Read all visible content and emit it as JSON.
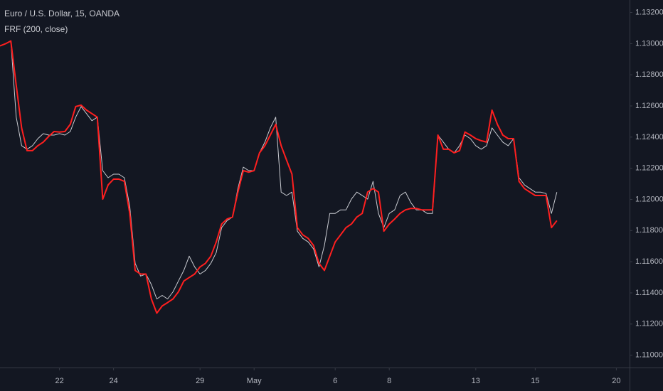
{
  "chart_data": {
    "type": "line",
    "categories": [
      null,
      null,
      null,
      null,
      null,
      null,
      null,
      null,
      null,
      null,
      null,
      "22",
      null,
      null,
      null,
      null,
      null,
      null,
      null,
      null,
      null,
      "24",
      null,
      null,
      null,
      null,
      null,
      null,
      null,
      null,
      null,
      null,
      null,
      null,
      null,
      null,
      null,
      "29",
      null,
      null,
      null,
      null,
      null,
      null,
      null,
      null,
      null,
      "May",
      null,
      null,
      null,
      null,
      null,
      null,
      null,
      null,
      null,
      null,
      null,
      null,
      null,
      null,
      "6",
      null,
      null,
      null,
      null,
      null,
      null,
      null,
      null,
      null,
      "8",
      null,
      null,
      null,
      null,
      null,
      null,
      null,
      null,
      null,
      null,
      null,
      null,
      null,
      null,
      null,
      "13",
      null,
      null,
      null,
      null,
      null,
      null,
      null,
      null,
      null,
      null,
      "15",
      null,
      null,
      null,
      null,
      null,
      null,
      null,
      null,
      null,
      null,
      null,
      null,
      null,
      null,
      "20",
      null,
      null
    ],
    "series": [
      {
        "name": "Euro / U.S. Dollar, 15, OANDA",
        "color": "#c9cbd1",
        "values": [
          1.12985,
          1.12999,
          1.13017,
          1.12528,
          1.12345,
          1.12322,
          1.12345,
          1.1239,
          1.12422,
          1.12413,
          1.12413,
          1.12422,
          1.12413,
          1.12436,
          1.12528,
          1.12596,
          1.12551,
          1.12505,
          1.12528,
          1.12185,
          1.12139,
          1.12162,
          1.12162,
          1.12139,
          1.11956,
          1.1159,
          1.11508,
          1.11521,
          1.11453,
          1.11361,
          1.11384,
          1.11361,
          1.11407,
          1.11476,
          1.11544,
          1.11636,
          1.11567,
          1.11521,
          1.11544,
          1.1159,
          1.11659,
          1.11819,
          1.11864,
          1.11887,
          1.1207,
          1.12207,
          1.12185,
          1.12185,
          1.12299,
          1.12368,
          1.12459,
          1.12528,
          1.12047,
          1.12025,
          1.12047,
          1.11796,
          1.1175,
          1.11727,
          1.11682,
          1.11567,
          1.11704,
          1.1191,
          1.1191,
          1.11933,
          1.11933,
          1.12002,
          1.12047,
          1.12025,
          1.12002,
          1.12116,
          1.1191,
          1.11819,
          1.1191,
          1.11933,
          1.12025,
          1.12047,
          1.11979,
          1.11933,
          1.11933,
          1.1191,
          1.1191,
          1.12413,
          1.12368,
          1.12322,
          1.12299,
          1.12345,
          1.12413,
          1.1239,
          1.12345,
          1.12322,
          1.12345,
          1.12459,
          1.12413,
          1.12368,
          1.12345,
          1.1239,
          1.12139,
          1.12093,
          1.1207,
          1.12047,
          1.12047,
          1.12038,
          1.1191,
          1.12047,
          null,
          null,
          null,
          null,
          null,
          null,
          null,
          null,
          null,
          null,
          null,
          null,
          null
        ]
      },
      {
        "name": "FRF (200, close)",
        "color": "#ff1f1f",
        "values": [
          1.12985,
          1.12999,
          1.13017,
          1.12733,
          1.12459,
          1.12313,
          1.12313,
          1.12345,
          1.12368,
          1.12404,
          1.12436,
          1.12432,
          1.12436,
          1.12482,
          1.12596,
          1.12605,
          1.12573,
          1.12551,
          1.12528,
          1.12002,
          1.12093,
          1.1213,
          1.1213,
          1.12116,
          1.1191,
          1.11544,
          1.11521,
          1.11521,
          1.11361,
          1.1127,
          1.11316,
          1.11338,
          1.11361,
          1.11407,
          1.11476,
          1.11499,
          1.11521,
          1.11567,
          1.1159,
          1.11636,
          1.11727,
          1.11842,
          1.11874,
          1.11887,
          1.12047,
          1.12185,
          1.12175,
          1.12185,
          1.12299,
          1.12345,
          1.12413,
          1.12482,
          1.12345,
          1.12253,
          1.12162,
          1.11819,
          1.11773,
          1.1175,
          1.11704,
          1.1159,
          1.11544,
          1.11636,
          1.11727,
          1.11773,
          1.11819,
          1.11842,
          1.11887,
          1.1191,
          1.12047,
          1.1207,
          1.12047,
          1.11796,
          1.11842,
          1.11874,
          1.1191,
          1.11933,
          1.11942,
          1.11942,
          1.11933,
          1.11933,
          1.11933,
          1.12413,
          1.12322,
          1.12322,
          1.12299,
          1.12313,
          1.12432,
          1.12413,
          1.1239,
          1.12377,
          1.12368,
          1.12573,
          1.12482,
          1.12413,
          1.1239,
          1.1239,
          1.12116,
          1.1207,
          1.12047,
          1.12025,
          1.12025,
          1.12025,
          1.11819,
          1.11864,
          null,
          null,
          null,
          null,
          null,
          null,
          null,
          null,
          null,
          null,
          null,
          null,
          null
        ]
      }
    ],
    "ylim": [
      1.1093,
      1.1328
    ],
    "yticks": [
      {
        "value": 1.11,
        "label": "1.11000"
      },
      {
        "value": 1.112,
        "label": "1.11200"
      },
      {
        "value": 1.114,
        "label": "1.11400"
      },
      {
        "value": 1.116,
        "label": "1.11600"
      },
      {
        "value": 1.118,
        "label": "1.11800"
      },
      {
        "value": 1.12,
        "label": "1.12000"
      },
      {
        "value": 1.122,
        "label": "1.12200"
      },
      {
        "value": 1.124,
        "label": "1.12400"
      },
      {
        "value": 1.126,
        "label": "1.12600"
      },
      {
        "value": 1.128,
        "label": "1.12800"
      },
      {
        "value": 1.13,
        "label": "1.13000"
      },
      {
        "value": 1.132,
        "label": "1.13200"
      }
    ],
    "grid": false
  }
}
